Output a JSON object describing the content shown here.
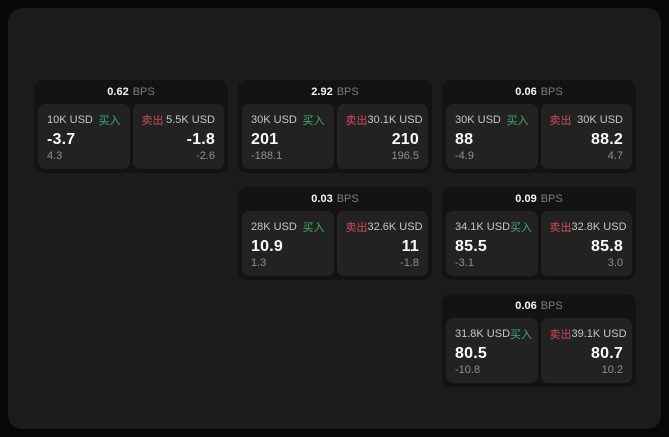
{
  "labels": {
    "bps_unit": "BPS",
    "buy": "买入",
    "sell": "卖出"
  },
  "colors": {
    "page_bg": "#070707",
    "container_bg": "#1b1b1b",
    "card_bg": "#131313",
    "panel_bg": "#222222",
    "buy_green": "#3fae6e",
    "sell_red": "#d04a5f"
  },
  "cards": [
    {
      "bps": "0.62",
      "buy": {
        "amount": "10K USD",
        "price": "-3.7",
        "delta": "4.3"
      },
      "sell": {
        "amount": "5.5K USD",
        "price": "-1.8",
        "delta": "-2.6"
      }
    },
    {
      "bps": "2.92",
      "buy": {
        "amount": "30K USD",
        "price": "201",
        "delta": "-188.1"
      },
      "sell": {
        "amount": "30.1K USD",
        "price": "210",
        "delta": "196.5"
      }
    },
    {
      "bps": "0.06",
      "buy": {
        "amount": "30K USD",
        "price": "88",
        "delta": "-4.9"
      },
      "sell": {
        "amount": "30K USD",
        "price": "88.2",
        "delta": "4.7"
      }
    },
    {
      "bps": "0.03",
      "buy": {
        "amount": "28K USD",
        "price": "10.9",
        "delta": "1.3"
      },
      "sell": {
        "amount": "32.6K USD",
        "price": "11",
        "delta": "-1.8"
      }
    },
    {
      "bps": "0.09",
      "buy": {
        "amount": "34.1K USD",
        "price": "85.5",
        "delta": "-3.1"
      },
      "sell": {
        "amount": "32.8K USD",
        "price": "85.8",
        "delta": "3.0"
      }
    },
    {
      "bps": "0.06",
      "buy": {
        "amount": "31.8K USD",
        "price": "80.5",
        "delta": "-10.8"
      },
      "sell": {
        "amount": "39.1K USD",
        "price": "80.7",
        "delta": "10.2"
      }
    }
  ]
}
